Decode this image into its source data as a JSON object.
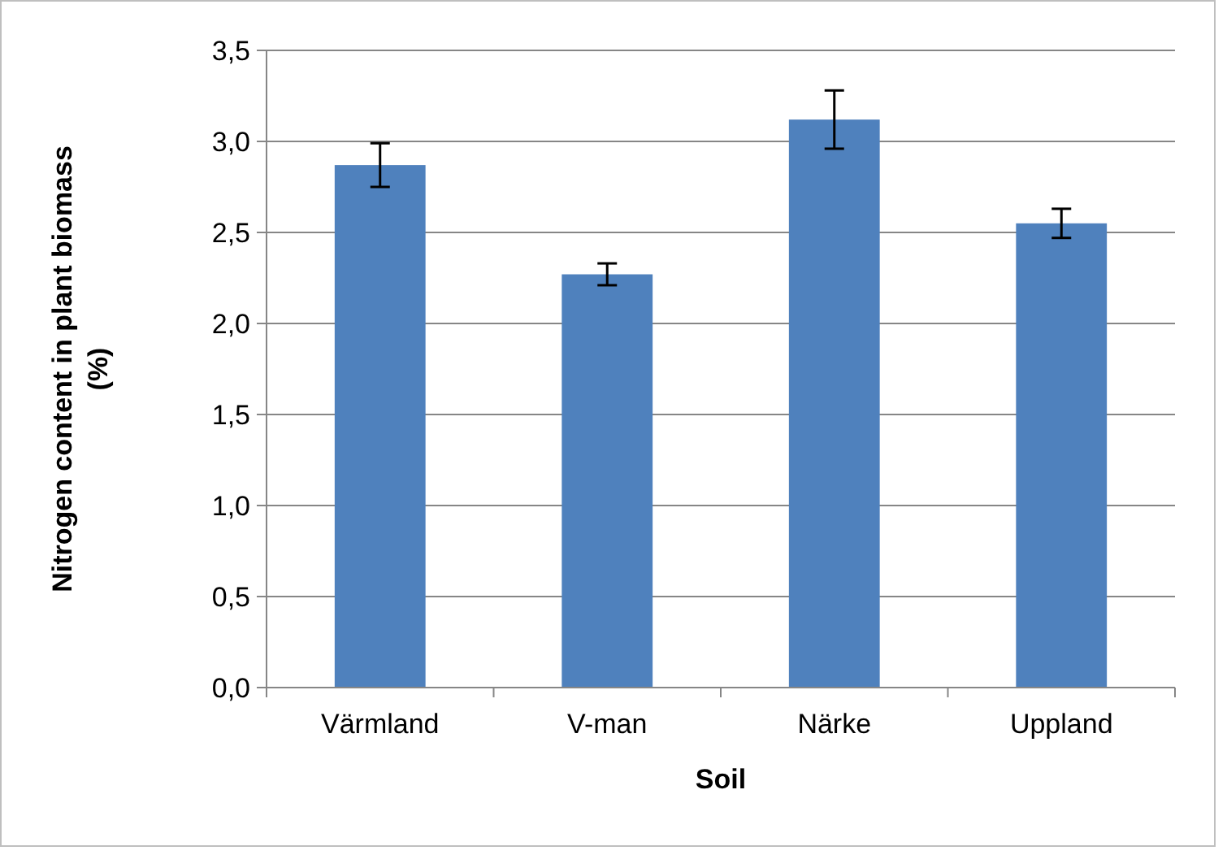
{
  "chart_data": {
    "type": "bar",
    "xlabel": "Soil",
    "ylabel": "Nitrogen content in plant biomass (%)",
    "categories": [
      "Värmland",
      "V-man",
      "Närke",
      "Uppland"
    ],
    "values": [
      2.87,
      2.27,
      3.12,
      2.55
    ],
    "errors": [
      0.12,
      0.06,
      0.16,
      0.08
    ],
    "color": "#4f81bd",
    "ylim": [
      0,
      3.5
    ],
    "yticks": [
      {
        "value": 0,
        "label": "0,0"
      },
      {
        "value": 0.5,
        "label": "0,5"
      },
      {
        "value": 1,
        "label": "1,0"
      },
      {
        "value": 1.5,
        "label": "1,5"
      },
      {
        "value": 2,
        "label": "2,0"
      },
      {
        "value": 2.5,
        "label": "2,5"
      },
      {
        "value": 3,
        "label": "3,0"
      },
      {
        "value": 3.5,
        "label": "3,5"
      }
    ],
    "grid": "y"
  }
}
